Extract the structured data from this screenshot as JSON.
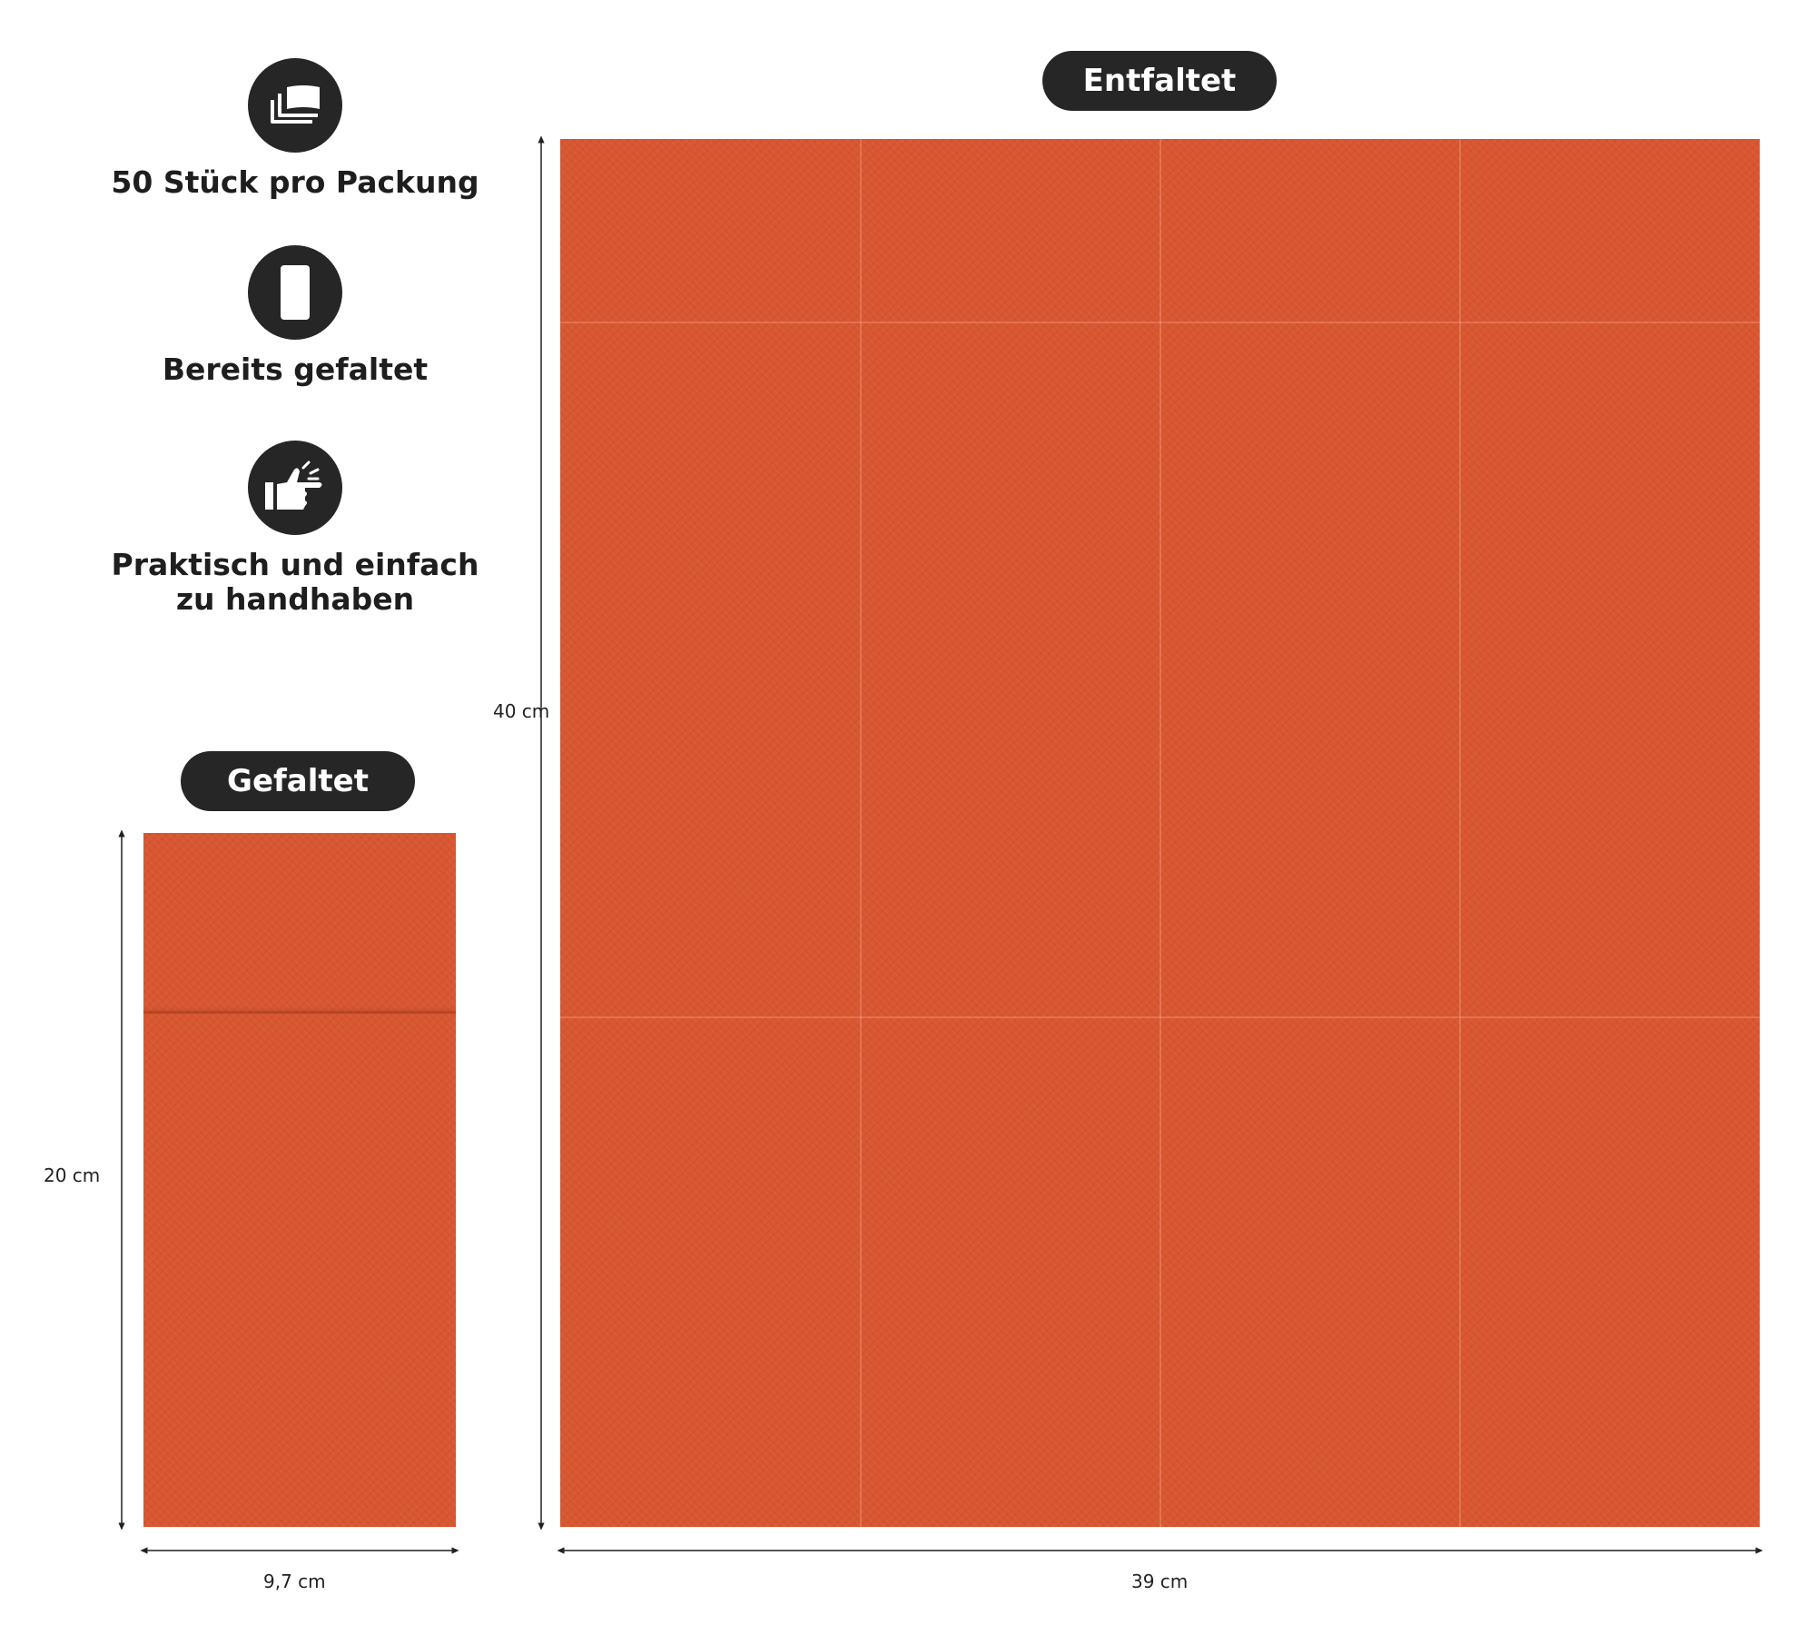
{
  "features": [
    {
      "icon": "stacked-sheets-icon",
      "label": "50 Stück pro Packung"
    },
    {
      "icon": "folded-napkin-icon",
      "label": "Bereits gefaltet"
    },
    {
      "icon": "hand-pointing-icon",
      "label_line1": "Praktisch und einfach",
      "label_line2": "zu handhaben"
    }
  ],
  "folded": {
    "title": "Gefaltet",
    "height_label": "20 cm",
    "width_label": "9,7 cm"
  },
  "unfolded": {
    "title": "Entfaltet",
    "height_label": "40 cm",
    "width_label": "39 cm"
  },
  "colors": {
    "napkin": "#d85630",
    "badge": "#262626",
    "text": "#1e1e1e"
  }
}
